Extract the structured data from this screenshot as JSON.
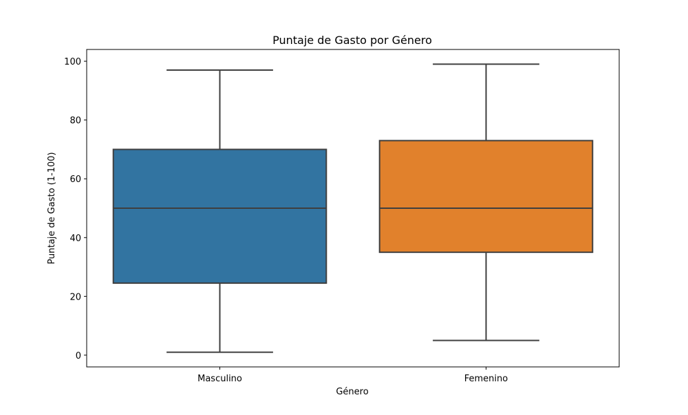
{
  "chart_data": {
    "type": "box",
    "title": "Puntaje de Gasto por Género",
    "xlabel": "Género",
    "ylabel": "Puntaje de Gasto (1-100)",
    "ylim": [
      -4,
      104
    ],
    "yticks": [
      0,
      20,
      40,
      60,
      80,
      100
    ],
    "grid": false,
    "categories": [
      "Masculino",
      "Femenino"
    ],
    "boxes": [
      {
        "category": "Masculino",
        "min": 1,
        "q1": 24.5,
        "median": 50,
        "q3": 70,
        "max": 97,
        "color": "#3274a1"
      },
      {
        "category": "Femenino",
        "min": 5,
        "q1": 35,
        "median": 50,
        "q3": 73,
        "max": 99,
        "color": "#e1812c"
      }
    ],
    "line_color": "#3f3f3f"
  }
}
